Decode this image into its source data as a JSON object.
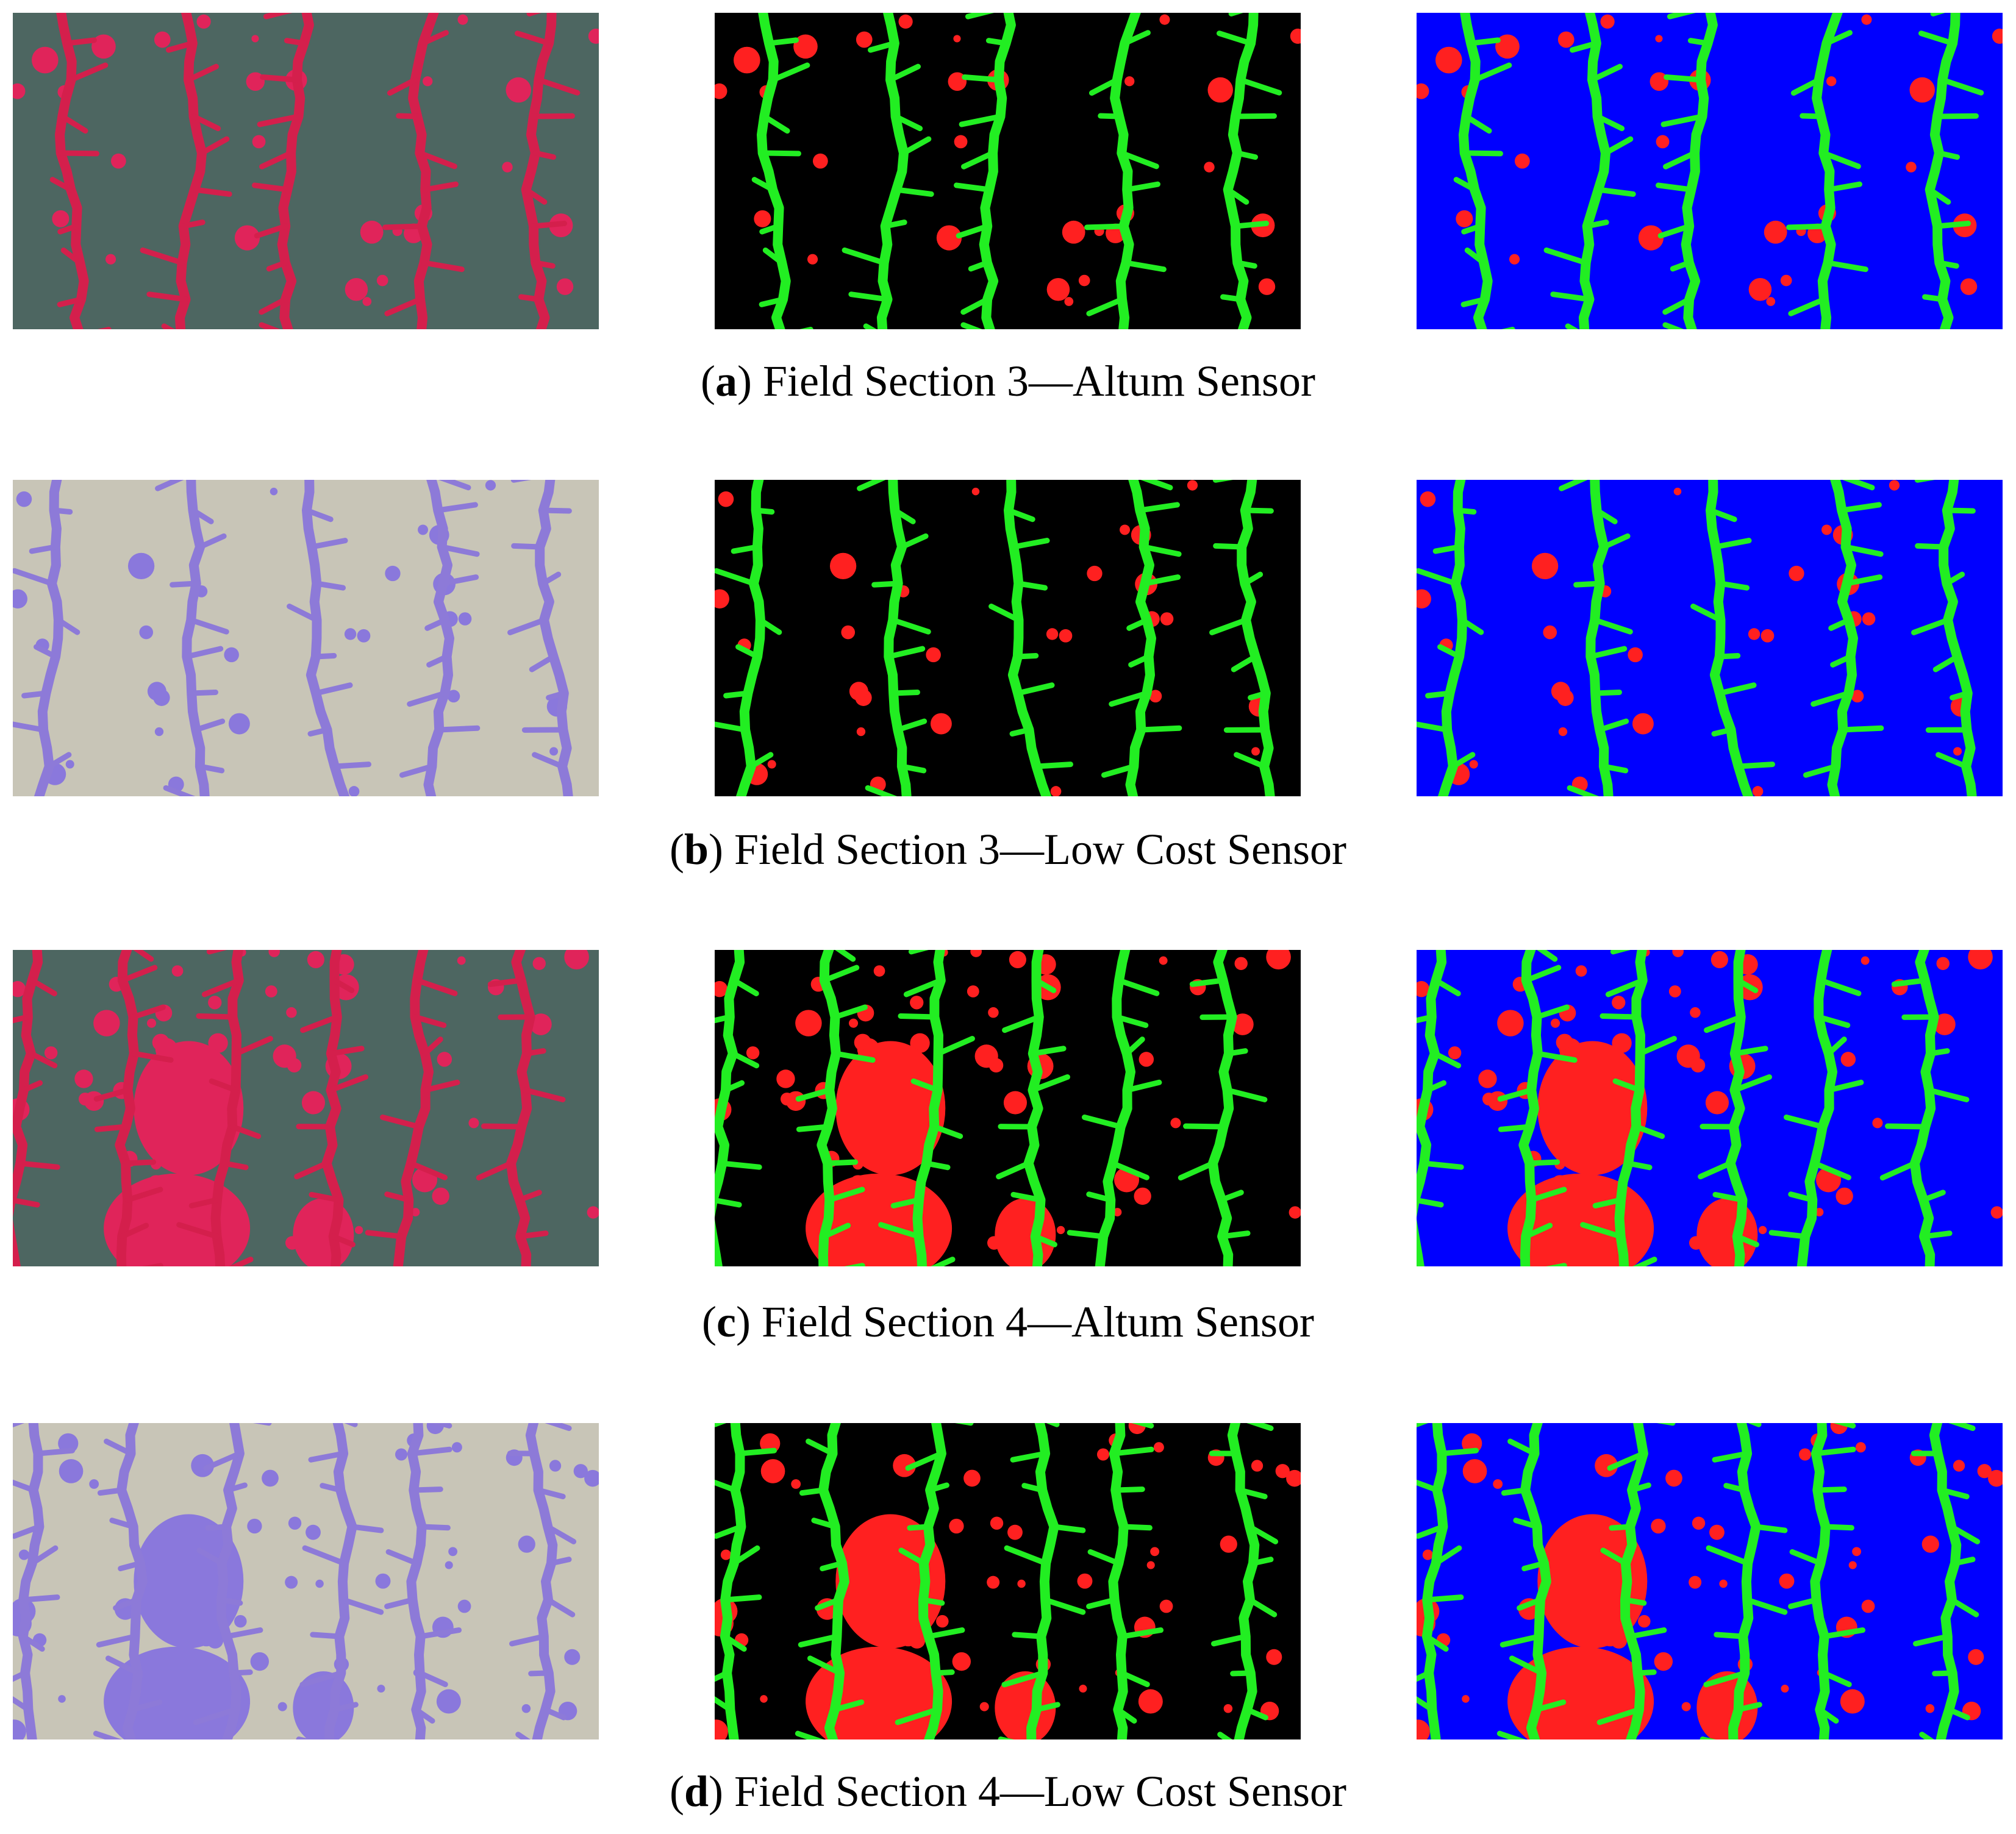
{
  "figure": {
    "panels": [
      {
        "caption": [
          "(",
          "a",
          ") Field Section 3—Altum Sensor"
        ]
      },
      {
        "caption": [
          "(",
          "b",
          ") Field Section 3—Low Cost Sensor"
        ]
      },
      {
        "caption": [
          "(",
          "c",
          ") Field Section 4—Altum Sensor"
        ]
      },
      {
        "caption": [
          "(",
          "d",
          ") Field Section 4—Low Cost Sensor"
        ]
      }
    ]
  }
}
